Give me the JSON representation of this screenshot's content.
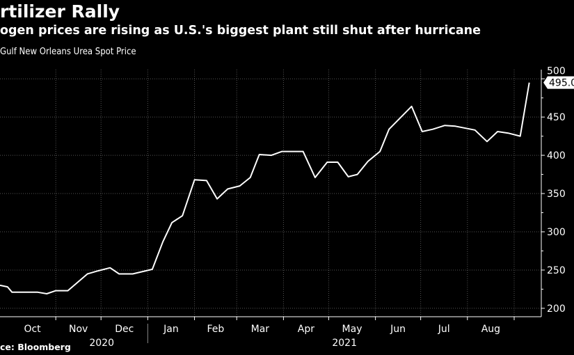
{
  "title": "rtilizer Rally",
  "subtitle": "ogen prices are rising as U.S.'s biggest plant still shut after hurricane",
  "legend": "Gulf New Orleans Urea Spot Price",
  "source": "ce: Bloomberg",
  "colors": {
    "background": "#000000",
    "line": "#ffffff",
    "grid": "#555555"
  },
  "chart_data": {
    "type": "line",
    "title": "rtilizer Rally",
    "series": [
      {
        "name": "Gulf New Orleans Urea Spot Price",
        "x": [
          "2020-09-25",
          "2020-09-30",
          "2020-10-03",
          "2020-10-16",
          "2020-10-20",
          "2020-10-26",
          "2020-11-01",
          "2020-11-09",
          "2020-11-22",
          "2020-11-29",
          "2020-12-07",
          "2020-12-13",
          "2020-12-22",
          "2021-01-04",
          "2021-01-11",
          "2021-01-17",
          "2021-01-24",
          "2021-02-01",
          "2021-02-09",
          "2021-02-16",
          "2021-02-23",
          "2021-03-03",
          "2021-03-10",
          "2021-03-16",
          "2021-03-24",
          "2021-03-31",
          "2021-04-14",
          "2021-04-22",
          "2021-04-30",
          "2021-05-07",
          "2021-05-14",
          "2021-05-20",
          "2021-05-27",
          "2021-06-04",
          "2021-06-10",
          "2021-06-25",
          "2021-07-02",
          "2021-07-09",
          "2021-07-17",
          "2021-07-24",
          "2021-08-06",
          "2021-08-14",
          "2021-08-21",
          "2021-08-28",
          "2021-09-05",
          "2021-09-11"
        ],
        "values": [
          230,
          228,
          221,
          221,
          221,
          219,
          223,
          223,
          245,
          249,
          253,
          245,
          245,
          251,
          287,
          312,
          321,
          368,
          367,
          343,
          356,
          360,
          371,
          401,
          400,
          405,
          405,
          371,
          391,
          391,
          372,
          375,
          392,
          405,
          434,
          464,
          431,
          434,
          439,
          438,
          433,
          418,
          431,
          429,
          425,
          495
        ]
      }
    ],
    "last_value_label": "495.0",
    "x_tick_labels": [
      "Oct",
      "Nov",
      "Dec",
      "Jan",
      "Feb",
      "Mar",
      "Apr",
      "May",
      "Jun",
      "Jul",
      "Aug"
    ],
    "x_year_labels": [
      "2020",
      "2021"
    ],
    "y_ticks": [
      200,
      250,
      300,
      350,
      400,
      450,
      500
    ],
    "y_tick_labels": [
      "200",
      "250",
      "300",
      "350",
      "400",
      "450",
      "500"
    ],
    "xlim": [
      "2020-09-25",
      "2021-09-19"
    ],
    "ylim": [
      189,
      512
    ],
    "y_axis_side": "right",
    "grid": true
  }
}
